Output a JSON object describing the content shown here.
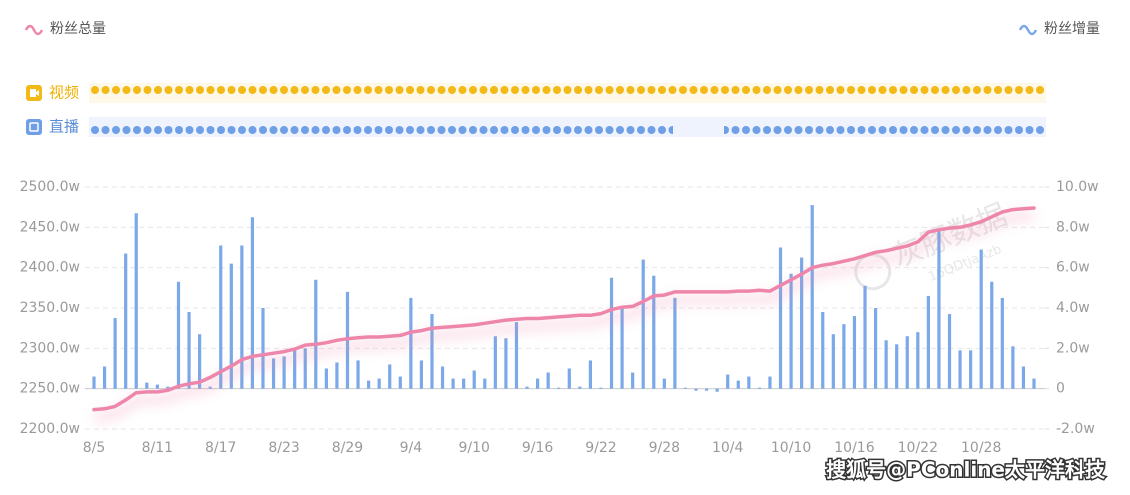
{
  "tracks": [
    {
      "label": "视频"
    },
    {
      "label": "直播"
    }
  ],
  "watermark": {
    "brand": "灰豚数据",
    "id": "16QDtjaAzb"
  },
  "footer": "搜狐号@PConline太平洋科技",
  "chart_data": {
    "type": "combo",
    "categories": [
      "8/5",
      null,
      null,
      null,
      null,
      null,
      "8/11",
      null,
      null,
      null,
      null,
      null,
      "8/17",
      null,
      null,
      null,
      null,
      null,
      "8/23",
      null,
      null,
      null,
      null,
      null,
      "8/29",
      null,
      null,
      null,
      null,
      null,
      "9/4",
      null,
      null,
      null,
      null,
      null,
      "9/10",
      null,
      null,
      null,
      null,
      null,
      "9/16",
      null,
      null,
      null,
      null,
      null,
      "9/22",
      null,
      null,
      null,
      null,
      null,
      "9/28",
      null,
      null,
      null,
      null,
      null,
      "10/4",
      null,
      null,
      null,
      null,
      null,
      "10/10",
      null,
      null,
      null,
      null,
      null,
      "10/16",
      null,
      null,
      null,
      null,
      null,
      "10/22",
      null,
      null,
      null,
      null,
      null,
      "10/28",
      null,
      null,
      null,
      null,
      null
    ],
    "series": [
      {
        "name": "粉丝总量",
        "type": "line",
        "color": "#ee86ab",
        "values": [
          2224,
          2225,
          2228,
          2236,
          2245,
          2246,
          2246,
          2248,
          2253,
          2256,
          2258,
          2264,
          2271,
          2278,
          2286,
          2290,
          2292,
          2294,
          2296,
          2299,
          2304,
          2305,
          2307,
          2310,
          2312,
          2313,
          2314,
          2314,
          2315,
          2316,
          2320,
          2322,
          2325,
          2326,
          2327,
          2328,
          2329,
          2331,
          2333,
          2335,
          2336,
          2337,
          2337,
          2338,
          2339,
          2340,
          2341,
          2341,
          2343,
          2348,
          2351,
          2352,
          2358,
          2365,
          2366,
          2370,
          2370,
          2370,
          2370,
          2370,
          2370,
          2371,
          2371,
          2372,
          2371,
          2378,
          2385,
          2392,
          2400,
          2403,
          2405,
          2408,
          2411,
          2415,
          2419,
          2421,
          2424,
          2427,
          2432,
          2444,
          2447,
          2449,
          2450,
          2453,
          2457,
          2463,
          2469,
          2472,
          2473,
          2474
        ]
      },
      {
        "name": "粉丝增量",
        "type": "bar",
        "axis": "y2",
        "color": "#7aa8e8",
        "values": [
          0.6,
          1.1,
          3.5,
          6.7,
          8.7,
          0.3,
          0.2,
          0.1,
          5.3,
          3.8,
          2.7,
          0.1,
          7.1,
          6.2,
          7.1,
          8.5,
          4.0,
          1.5,
          1.6,
          2.0,
          2.0,
          5.4,
          1.0,
          1.3,
          4.8,
          1.4,
          0.4,
          0.5,
          1.2,
          0.6,
          4.5,
          1.4,
          3.7,
          1.1,
          0.5,
          0.5,
          0.9,
          0.5,
          2.6,
          2.5,
          3.3,
          0.1,
          0.5,
          0.8,
          0.05,
          1.0,
          0.1,
          1.4,
          0.05,
          5.5,
          4.0,
          0.8,
          6.4,
          5.6,
          0.5,
          4.5,
          0.05,
          -0.1,
          -0.1,
          -0.15,
          0.7,
          0.4,
          0.6,
          0.05,
          0.6,
          7.0,
          5.7,
          6.5,
          9.1,
          3.8,
          2.7,
          3.2,
          3.6,
          5.1,
          4.0,
          2.4,
          2.2,
          2.6,
          2.8,
          4.6,
          7.8,
          3.7,
          1.9,
          1.9,
          6.9,
          5.3,
          4.5,
          2.1,
          1.1,
          0.5
        ]
      }
    ],
    "ylim": [
      2200,
      2500
    ],
    "yticks": [
      {
        "value": 2200,
        "label": "2200.0w"
      },
      {
        "value": 2250,
        "label": "2250.0w"
      },
      {
        "value": 2300,
        "label": "2300.0w"
      },
      {
        "value": 2350,
        "label": "2350.0w"
      },
      {
        "value": 2400,
        "label": "2400.0w"
      },
      {
        "value": 2450,
        "label": "2450.0w"
      },
      {
        "value": 2500,
        "label": "2500.0w"
      }
    ],
    "y2lim": [
      -2,
      10
    ],
    "y2ticks": [
      {
        "value": -2,
        "label": "-2.0w"
      },
      {
        "value": 0,
        "label": "0"
      },
      {
        "value": 2,
        "label": "2.0w"
      },
      {
        "value": 4,
        "label": "4.0w"
      },
      {
        "value": 6,
        "label": "6.0w"
      },
      {
        "value": 8,
        "label": "8.0w"
      },
      {
        "value": 10,
        "label": "10.0w"
      }
    ],
    "grid": true
  }
}
